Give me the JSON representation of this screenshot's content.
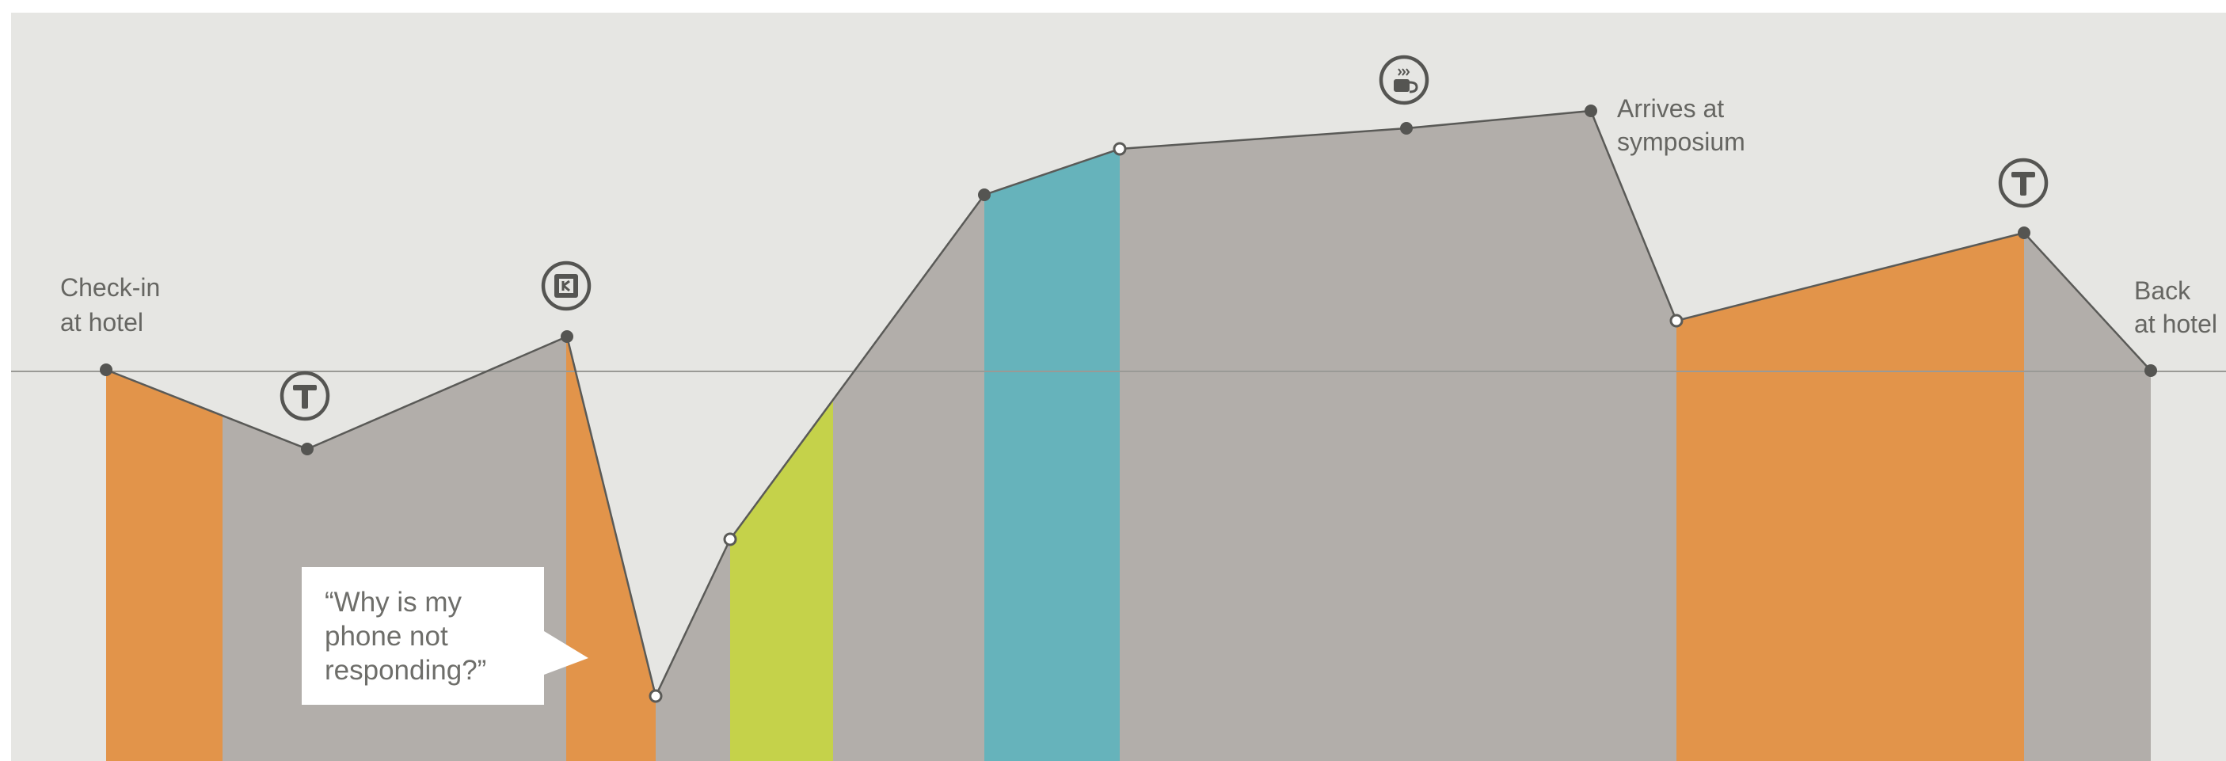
{
  "diagram": {
    "kind": "customer-journey-curve",
    "colors": {
      "background": "#e6e6e3",
      "frame": "#ffffff",
      "baseline": "#9a9a96",
      "segment_gray": "#b2aeaa",
      "segment_orange": "#e2944a",
      "segment_green": "#c5d24a",
      "segment_teal": "#66b3bb",
      "line": "#5a5a57",
      "point_fill": "#555552",
      "point_open": "#ffffff",
      "text": "#666662"
    },
    "points": [
      {
        "id": "check-in",
        "style": "filled"
      },
      {
        "id": "transit-1",
        "style": "filled"
      },
      {
        "id": "kiosk",
        "style": "filled"
      },
      {
        "id": "phone-issue",
        "style": "open"
      },
      {
        "id": "recovery",
        "style": "open"
      },
      {
        "id": "peak-start",
        "style": "filled"
      },
      {
        "id": "peak-open",
        "style": "open"
      },
      {
        "id": "coffee",
        "style": "filled"
      },
      {
        "id": "arrives",
        "style": "filled"
      },
      {
        "id": "drop",
        "style": "open"
      },
      {
        "id": "transit-2",
        "style": "filled"
      },
      {
        "id": "back",
        "style": "filled"
      }
    ],
    "segments": [
      {
        "color": "segment_orange"
      },
      {
        "color": "segment_gray"
      },
      {
        "color": "segment_orange"
      },
      {
        "color": "segment_gray"
      },
      {
        "color": "segment_green"
      },
      {
        "color": "segment_gray"
      },
      {
        "color": "segment_teal"
      },
      {
        "color": "segment_gray"
      },
      {
        "color": "segment_orange"
      },
      {
        "color": "segment_gray"
      }
    ],
    "icons": [
      {
        "name": "transit-t-icon",
        "glyph": "T"
      },
      {
        "name": "kiosk-k-icon",
        "glyph": "K"
      },
      {
        "name": "coffee-cup-icon",
        "glyph": "cup"
      },
      {
        "name": "transit-t-icon",
        "glyph": "T"
      }
    ],
    "labels": {
      "check_in_line1": "Check-in",
      "check_in_line2": "at hotel",
      "arrives_line1": "Arrives at",
      "arrives_line2": "symposium",
      "back_line1": "Back",
      "back_line2": "at hotel"
    },
    "callout": {
      "line1": "“Why is my",
      "line2": "phone not",
      "line3": "responding?”"
    }
  }
}
